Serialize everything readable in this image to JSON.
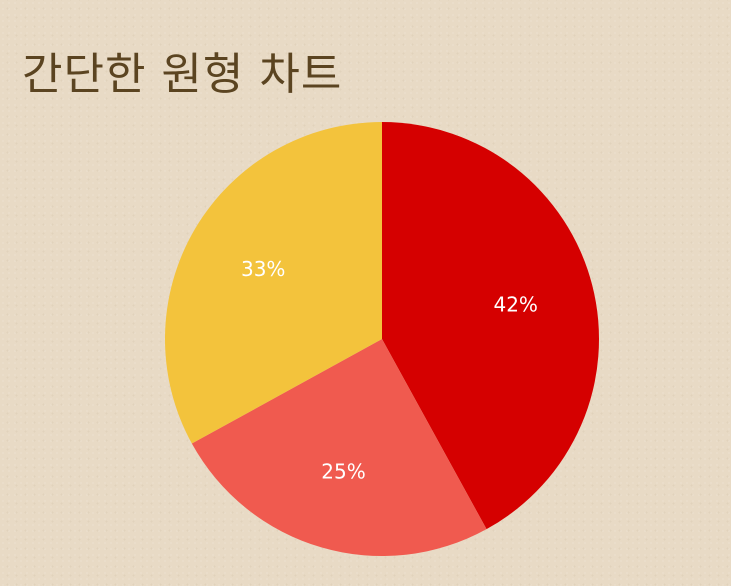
{
  "chart_data": {
    "type": "pie",
    "title": "간단한 원형 차트",
    "slices": [
      {
        "value": 42,
        "label": "42%",
        "color": "#d50000"
      },
      {
        "value": 25,
        "label": "25%",
        "color": "#f05a4f"
      },
      {
        "value": 33,
        "label": "33%",
        "color": "#f3c33c"
      }
    ],
    "start_angle": "12 o'clock",
    "direction": "clockwise",
    "legend": "none"
  }
}
